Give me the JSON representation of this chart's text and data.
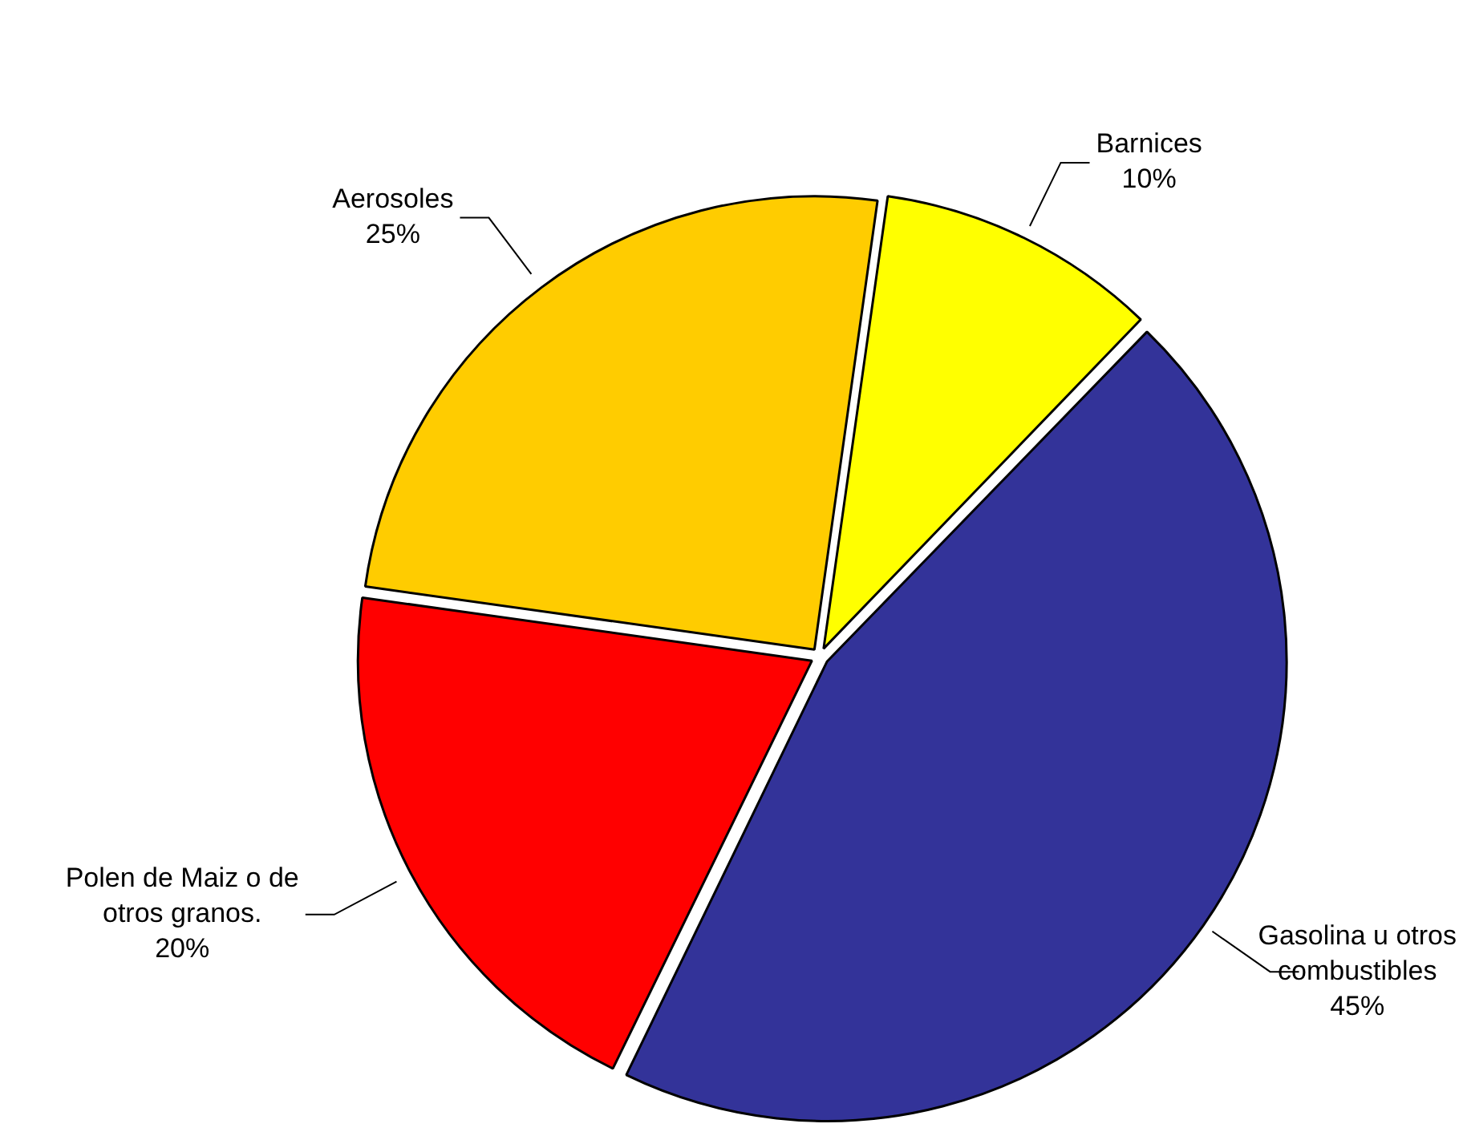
{
  "chart_data": {
    "type": "pie",
    "categories": [
      "Barnices",
      "Gasolina u otros combustibles",
      "Polen de Maiz o de otros granos.",
      "Aerosoles"
    ],
    "values": [
      10,
      45,
      20,
      25
    ],
    "colors": [
      "#ffff00",
      "#333399",
      "#ff0000",
      "#ffcc00"
    ],
    "value_labels": [
      "10%",
      "45%",
      "20%",
      "25%"
    ],
    "legend": false
  }
}
